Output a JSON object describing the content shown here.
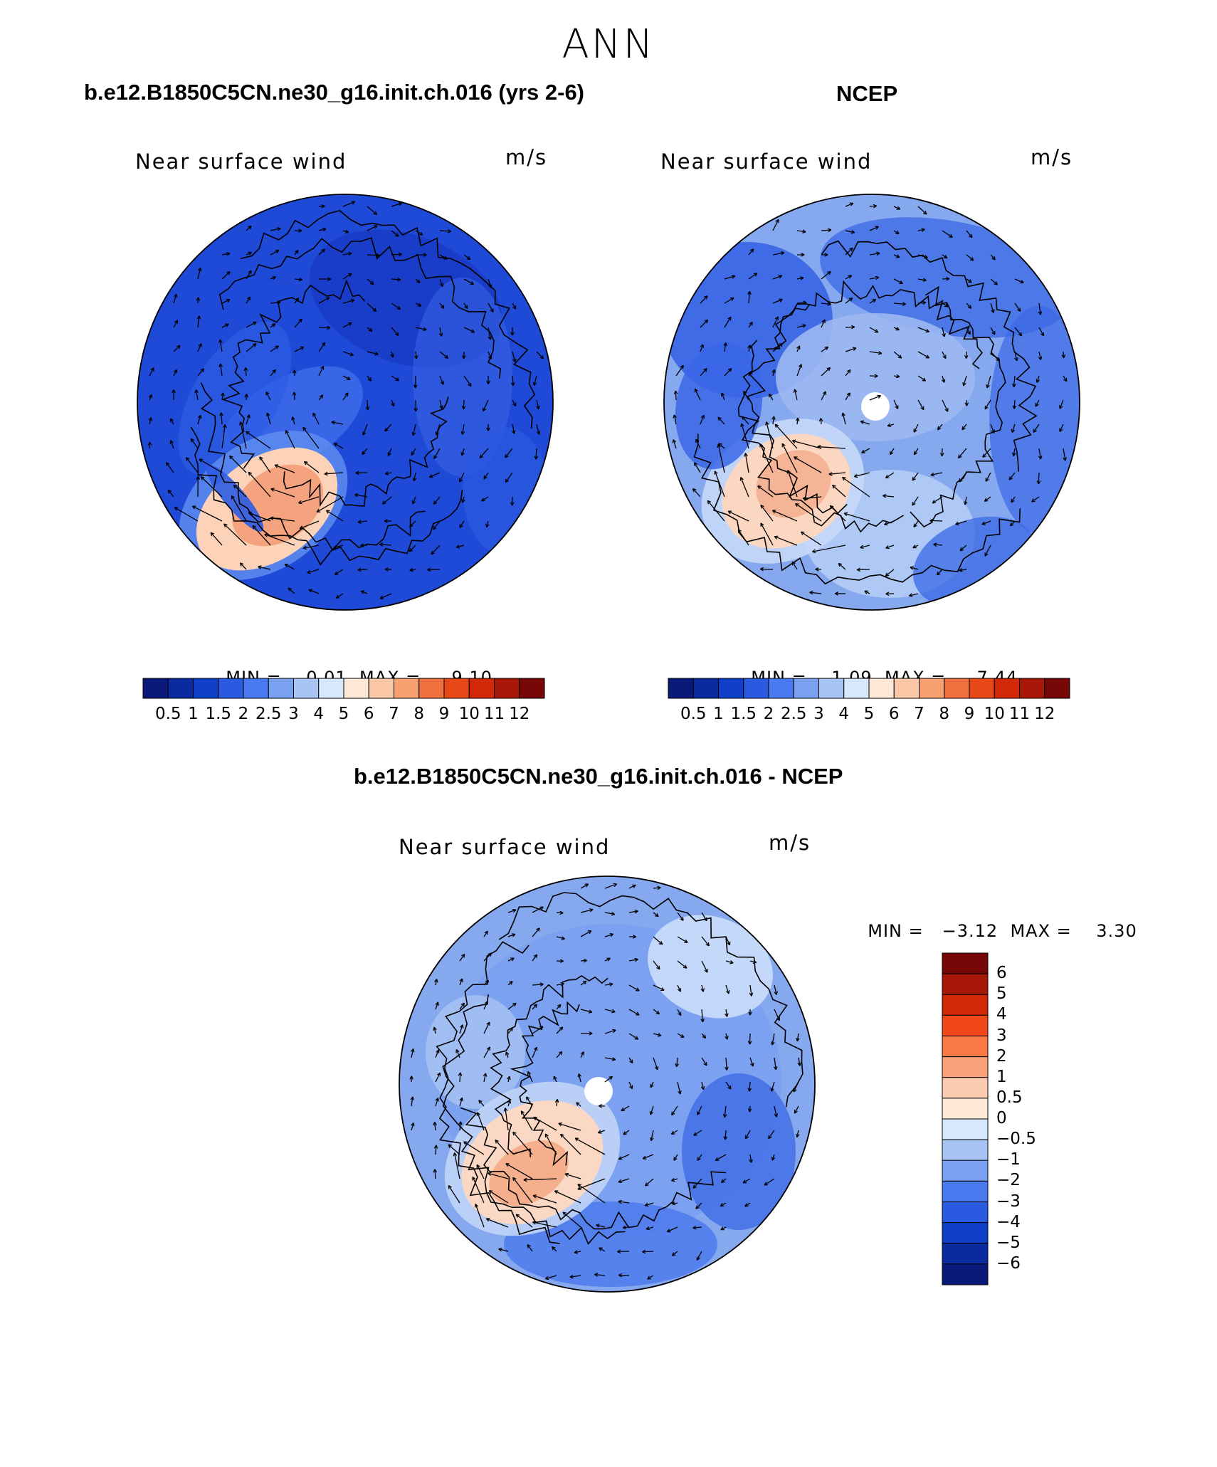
{
  "page": {
    "title": "ANN"
  },
  "panels": [
    {
      "id": "model",
      "case_title": "b.e12.B1850C5CN.ne30_g16.init.ch.016 (yrs 2-6)",
      "variable": "Near surface wind",
      "units": "m/s",
      "min_label": "MIN =",
      "min": "0.01",
      "max_label": "MAX =",
      "max": "9.10"
    },
    {
      "id": "obs",
      "case_title": "NCEP",
      "variable": "Near surface wind",
      "units": "m/s",
      "min_label": "MIN =",
      "min": "1.09",
      "max_label": "MAX =",
      "max": "7.44"
    },
    {
      "id": "diff",
      "case_title": "b.e12.B1850C5CN.ne30_g16.init.ch.016 - NCEP",
      "variable": "Near surface wind",
      "units": "m/s",
      "min_label": "MIN =",
      "min": "−3.12",
      "max_label": "MAX =",
      "max": "3.30"
    }
  ],
  "colorbars": {
    "absolute": {
      "colors": [
        "#0a1a7a",
        "#0a2aa0",
        "#1040c8",
        "#2a5ae0",
        "#4a7af0",
        "#7aa0f0",
        "#a8c4f4",
        "#d8e8fc",
        "#fde8d8",
        "#fbc8a8",
        "#f8a070",
        "#f07040",
        "#e84818",
        "#d02808",
        "#a81808",
        "#780808"
      ],
      "ticks": [
        "0.5",
        "1",
        "1.5",
        "2",
        "2.5",
        "3",
        "4",
        "5",
        "6",
        "7",
        "8",
        "9",
        "10",
        "11",
        "12"
      ]
    },
    "difference": {
      "colors": [
        "#780808",
        "#a81808",
        "#d02808",
        "#f04818",
        "#f87848",
        "#f8a078",
        "#fccab0",
        "#fde8d8",
        "#d8e8fc",
        "#a8c4f4",
        "#7aa0f0",
        "#4a7af0",
        "#2a5ae0",
        "#1040c8",
        "#0a2aa0",
        "#0a1a7a"
      ],
      "ticks": [
        "6",
        "5",
        "4",
        "3",
        "2",
        "1",
        "0.5",
        "0",
        "−0.5",
        "−1",
        "−2",
        "−3",
        "−4",
        "−5",
        "−6"
      ]
    }
  },
  "map_colors": {
    "deep": "#1f4ad8",
    "mid": "#3a6ae8",
    "light": "#86a8ee",
    "pale": "#b6ccf4",
    "warm": "#f8c4a4",
    "hot": "#f39a74",
    "land": "#000000"
  }
}
